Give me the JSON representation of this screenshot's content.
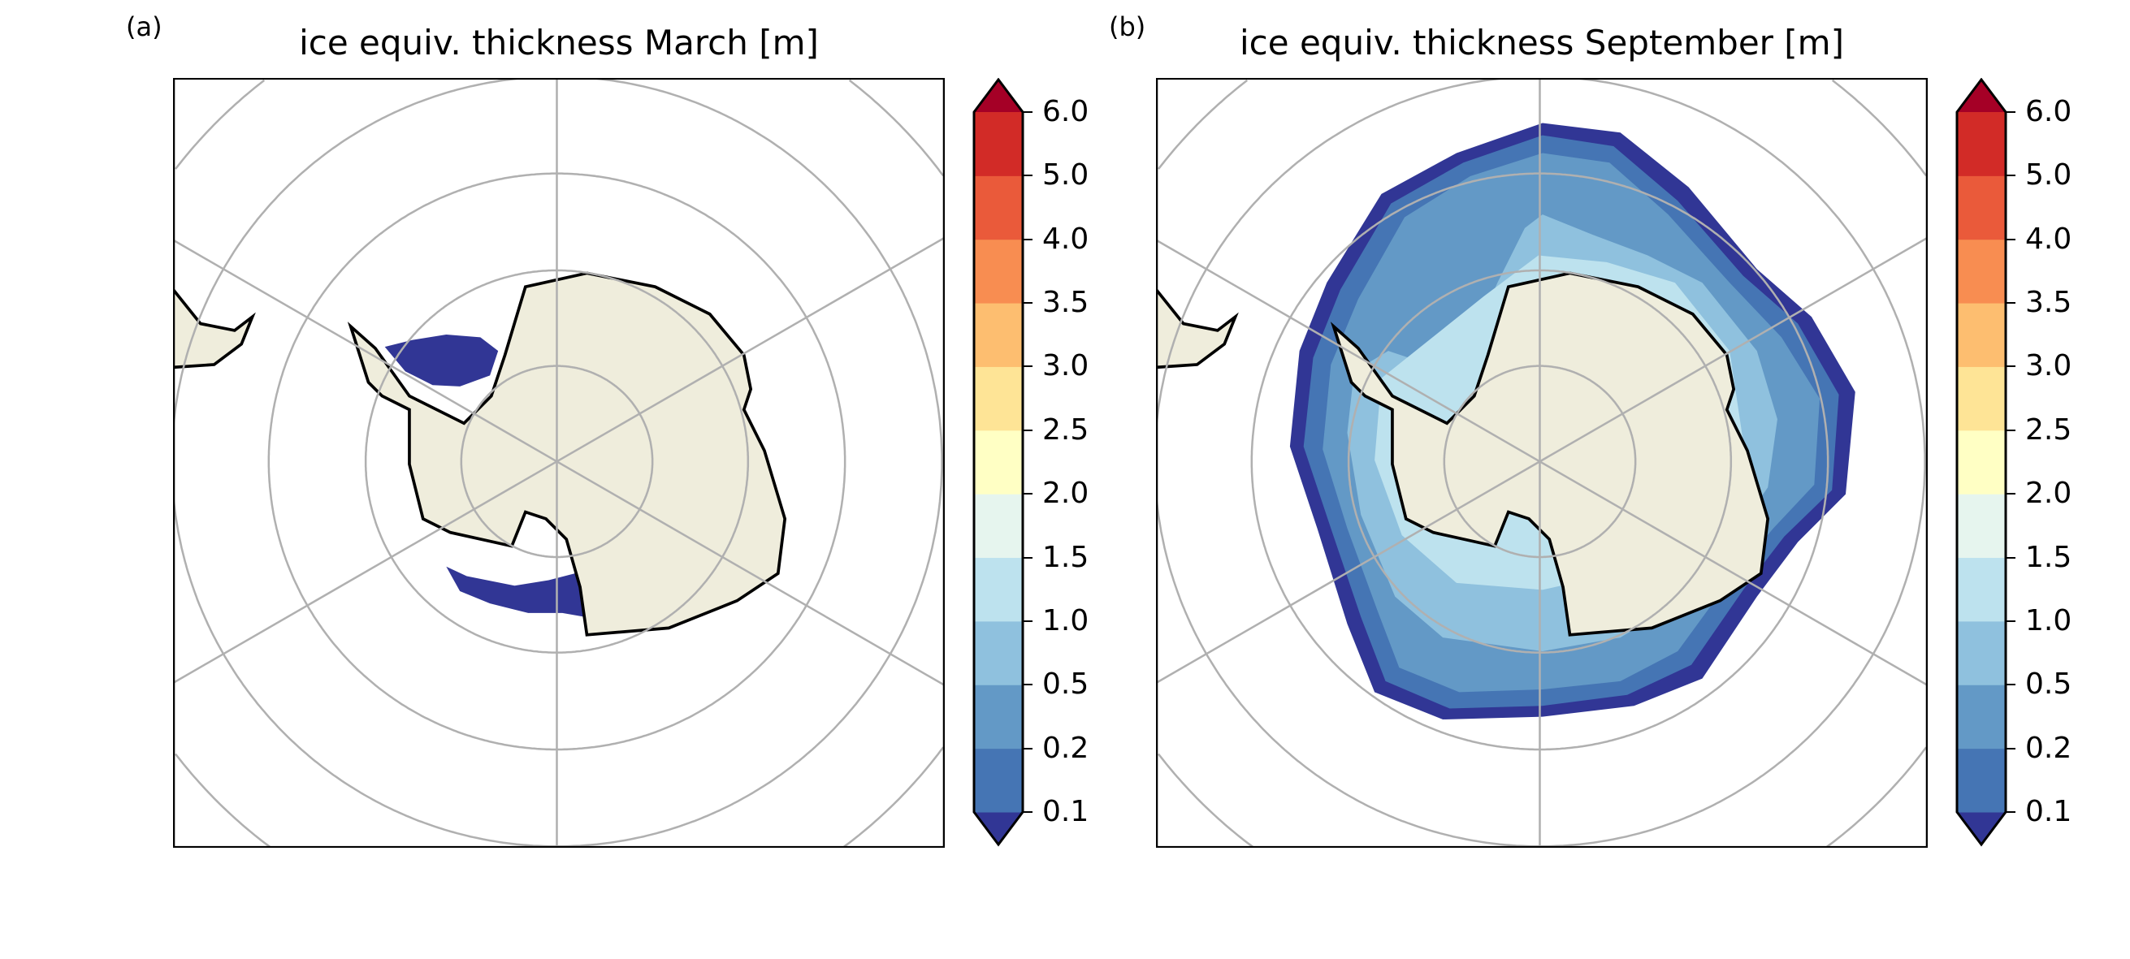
{
  "chart_data": [
    {
      "type": "heatmap",
      "panel_label": "(a)",
      "title": "ice equiv. thickness March [m]",
      "projection": "south polar stereographic",
      "description_values": "sea ice mostly 0.0-0.1 m, small patches in Weddell and Ross seas",
      "colorbar": {
        "extend": "both",
        "ticks": [
          "0.1",
          "0.2",
          "0.5",
          "1.0",
          "1.5",
          "2.0",
          "2.5",
          "3.0",
          "3.5",
          "4.0",
          "5.0",
          "6.0"
        ]
      }
    },
    {
      "type": "heatmap",
      "panel_label": "(b)",
      "title": "ice equiv. thickness September [m]",
      "projection": "south polar stereographic",
      "description_values": "sea ice ring: outer edge <0.1 m, 0.1-0.2, 0.2-0.5 bulk, 0.5-1.5 near coast",
      "colorbar": {
        "extend": "both",
        "ticks": [
          "0.1",
          "0.2",
          "0.5",
          "1.0",
          "1.5",
          "2.0",
          "2.5",
          "3.0",
          "3.5",
          "4.0",
          "5.0",
          "6.0"
        ]
      }
    }
  ],
  "colors": {
    "under": "#313695",
    "levels": [
      "#4575b4",
      "#6399c6",
      "#8fc1de",
      "#bde2ee",
      "#e6f5ee",
      "#ffffc4",
      "#fee496",
      "#fdbe70",
      "#f88d51",
      "#ea5a3a",
      "#d22b27"
    ],
    "over": "#a50026",
    "land": "#efeddc",
    "grid": "#b0b0b0"
  }
}
